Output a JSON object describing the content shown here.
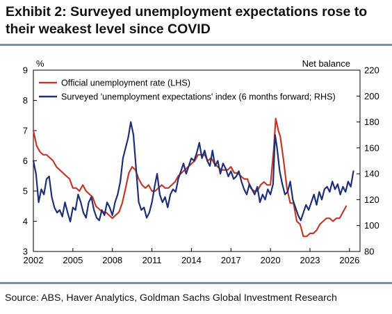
{
  "header": {
    "title": "Exhibit 2: Surveyed unemployment expectations rose to their weakest level since COVID"
  },
  "footer": {
    "source": "Source: ABS, Haver Analytics, Goldman Sachs Global Investment Research"
  },
  "chart_data": {
    "type": "line",
    "title": "",
    "xlabel": "",
    "ylabel_left": "%",
    "ylabel_right": "Net balance",
    "xlim": [
      2002,
      2026.8
    ],
    "ylim_left": [
      3,
      9
    ],
    "ylim_right": [
      80,
      220
    ],
    "x_ticks": [
      2002,
      2005,
      2008,
      2011,
      2014,
      2017,
      2020,
      2023,
      2026
    ],
    "y_left_ticks": [
      3,
      4,
      5,
      6,
      7,
      8,
      9
    ],
    "y_right_ticks": [
      80,
      100,
      120,
      140,
      160,
      180,
      200,
      220
    ],
    "grid": false,
    "legend_position": "top-left",
    "series": [
      {
        "name": "Official unemployment rate (LHS)",
        "axis": "left",
        "color": "#c0392b",
        "points": [
          [
            2002.0,
            7.0
          ],
          [
            2002.25,
            6.5
          ],
          [
            2002.5,
            6.3
          ],
          [
            2002.75,
            6.2
          ],
          [
            2003.0,
            6.2
          ],
          [
            2003.25,
            6.1
          ],
          [
            2003.5,
            6.0
          ],
          [
            2003.75,
            5.8
          ],
          [
            2004.0,
            5.7
          ],
          [
            2004.25,
            5.6
          ],
          [
            2004.5,
            5.5
          ],
          [
            2004.75,
            5.4
          ],
          [
            2005.0,
            5.1
          ],
          [
            2005.25,
            5.1
          ],
          [
            2005.5,
            5.0
          ],
          [
            2005.75,
            5.2
          ],
          [
            2006.0,
            5.0
          ],
          [
            2006.25,
            4.9
          ],
          [
            2006.5,
            4.8
          ],
          [
            2006.75,
            4.5
          ],
          [
            2007.0,
            4.4
          ],
          [
            2007.25,
            4.3
          ],
          [
            2007.5,
            4.3
          ],
          [
            2007.75,
            4.2
          ],
          [
            2008.0,
            4.1
          ],
          [
            2008.25,
            4.2
          ],
          [
            2008.5,
            4.3
          ],
          [
            2008.75,
            4.6
          ],
          [
            2009.0,
            5.1
          ],
          [
            2009.25,
            5.6
          ],
          [
            2009.5,
            5.8
          ],
          [
            2009.75,
            5.7
          ],
          [
            2010.0,
            5.4
          ],
          [
            2010.25,
            5.2
          ],
          [
            2010.5,
            5.1
          ],
          [
            2010.75,
            5.2
          ],
          [
            2011.0,
            5.0
          ],
          [
            2011.25,
            5.0
          ],
          [
            2011.5,
            5.1
          ],
          [
            2011.75,
            5.2
          ],
          [
            2012.0,
            5.1
          ],
          [
            2012.25,
            5.1
          ],
          [
            2012.5,
            5.2
          ],
          [
            2012.75,
            5.3
          ],
          [
            2013.0,
            5.5
          ],
          [
            2013.25,
            5.6
          ],
          [
            2013.5,
            5.7
          ],
          [
            2013.75,
            5.8
          ],
          [
            2014.0,
            5.9
          ],
          [
            2014.25,
            6.0
          ],
          [
            2014.5,
            6.2
          ],
          [
            2014.75,
            6.2
          ],
          [
            2015.0,
            6.2
          ],
          [
            2015.25,
            6.0
          ],
          [
            2015.5,
            6.1
          ],
          [
            2015.75,
            5.9
          ],
          [
            2016.0,
            5.8
          ],
          [
            2016.25,
            5.7
          ],
          [
            2016.5,
            5.7
          ],
          [
            2016.75,
            5.7
          ],
          [
            2017.0,
            5.8
          ],
          [
            2017.25,
            5.6
          ],
          [
            2017.5,
            5.6
          ],
          [
            2017.75,
            5.5
          ],
          [
            2018.0,
            5.4
          ],
          [
            2018.25,
            5.4
          ],
          [
            2018.5,
            5.1
          ],
          [
            2018.75,
            5.0
          ],
          [
            2019.0,
            5.0
          ],
          [
            2019.25,
            5.2
          ],
          [
            2019.5,
            5.3
          ],
          [
            2019.75,
            5.2
          ],
          [
            2020.0,
            5.2
          ],
          [
            2020.25,
            6.4
          ],
          [
            2020.4,
            7.4
          ],
          [
            2020.6,
            7.0
          ],
          [
            2020.75,
            6.8
          ],
          [
            2021.0,
            6.0
          ],
          [
            2021.25,
            5.1
          ],
          [
            2021.5,
            4.6
          ],
          [
            2021.75,
            4.6
          ],
          [
            2022.0,
            4.0
          ],
          [
            2022.25,
            3.9
          ],
          [
            2022.5,
            3.5
          ],
          [
            2022.75,
            3.5
          ],
          [
            2023.0,
            3.6
          ],
          [
            2023.25,
            3.6
          ],
          [
            2023.5,
            3.7
          ],
          [
            2023.75,
            3.9
          ],
          [
            2024.0,
            4.0
          ],
          [
            2024.25,
            4.1
          ],
          [
            2024.5,
            4.1
          ],
          [
            2024.75,
            4.0
          ],
          [
            2025.0,
            4.1
          ],
          [
            2025.25,
            4.1
          ],
          [
            2025.5,
            4.3
          ],
          [
            2025.75,
            4.5
          ]
        ]
      },
      {
        "name": "Surveyed 'unemployment expectations' index (6 months forward; RHS)",
        "axis": "right",
        "color": "#1f2f75",
        "points": [
          [
            2002.0,
            150
          ],
          [
            2002.2,
            140
          ],
          [
            2002.4,
            118
          ],
          [
            2002.6,
            128
          ],
          [
            2002.8,
            124
          ],
          [
            2003.0,
            136
          ],
          [
            2003.2,
            138
          ],
          [
            2003.4,
            122
          ],
          [
            2003.6,
            114
          ],
          [
            2003.8,
            110
          ],
          [
            2004.0,
            112
          ],
          [
            2004.2,
            107
          ],
          [
            2004.4,
            118
          ],
          [
            2004.6,
            110
          ],
          [
            2004.8,
            103
          ],
          [
            2005.0,
            114
          ],
          [
            2005.2,
            112
          ],
          [
            2005.4,
            124
          ],
          [
            2005.6,
            118
          ],
          [
            2005.8,
            110
          ],
          [
            2006.0,
            106
          ],
          [
            2006.2,
            118
          ],
          [
            2006.4,
            122
          ],
          [
            2006.6,
            112
          ],
          [
            2006.8,
            106
          ],
          [
            2007.0,
            104
          ],
          [
            2007.2,
            112
          ],
          [
            2007.4,
            108
          ],
          [
            2007.6,
            118
          ],
          [
            2007.8,
            114
          ],
          [
            2008.0,
            108
          ],
          [
            2008.2,
            118
          ],
          [
            2008.4,
            124
          ],
          [
            2008.6,
            134
          ],
          [
            2008.8,
            152
          ],
          [
            2009.0,
            160
          ],
          [
            2009.2,
            168
          ],
          [
            2009.4,
            180
          ],
          [
            2009.6,
            170
          ],
          [
            2009.8,
            144
          ],
          [
            2010.0,
            118
          ],
          [
            2010.2,
            112
          ],
          [
            2010.4,
            114
          ],
          [
            2010.6,
            106
          ],
          [
            2010.8,
            110
          ],
          [
            2011.0,
            118
          ],
          [
            2011.2,
            130
          ],
          [
            2011.4,
            140
          ],
          [
            2011.6,
            124
          ],
          [
            2011.8,
            118
          ],
          [
            2012.0,
            122
          ],
          [
            2012.2,
            114
          ],
          [
            2012.4,
            124
          ],
          [
            2012.6,
            128
          ],
          [
            2012.8,
            126
          ],
          [
            2013.0,
            136
          ],
          [
            2013.2,
            142
          ],
          [
            2013.4,
            148
          ],
          [
            2013.6,
            140
          ],
          [
            2013.8,
            146
          ],
          [
            2014.0,
            152
          ],
          [
            2014.2,
            150
          ],
          [
            2014.4,
            156
          ],
          [
            2014.6,
            164
          ],
          [
            2014.8,
            152
          ],
          [
            2015.0,
            158
          ],
          [
            2015.2,
            150
          ],
          [
            2015.4,
            146
          ],
          [
            2015.6,
            158
          ],
          [
            2015.8,
            146
          ],
          [
            2016.0,
            150
          ],
          [
            2016.2,
            140
          ],
          [
            2016.4,
            148
          ],
          [
            2016.6,
            144
          ],
          [
            2016.8,
            138
          ],
          [
            2017.0,
            142
          ],
          [
            2017.2,
            136
          ],
          [
            2017.4,
            138
          ],
          [
            2017.6,
            142
          ],
          [
            2017.8,
            134
          ],
          [
            2018.0,
            128
          ],
          [
            2018.2,
            124
          ],
          [
            2018.4,
            132
          ],
          [
            2018.6,
            128
          ],
          [
            2018.8,
            124
          ],
          [
            2019.0,
            130
          ],
          [
            2019.2,
            118
          ],
          [
            2019.4,
            124
          ],
          [
            2019.6,
            120
          ],
          [
            2019.8,
            128
          ],
          [
            2020.0,
            124
          ],
          [
            2020.2,
            132
          ],
          [
            2020.35,
            170
          ],
          [
            2020.5,
            160
          ],
          [
            2020.7,
            142
          ],
          [
            2020.9,
            132
          ],
          [
            2021.1,
            124
          ],
          [
            2021.3,
            126
          ],
          [
            2021.5,
            134
          ],
          [
            2021.7,
            120
          ],
          [
            2021.9,
            114
          ],
          [
            2022.1,
            108
          ],
          [
            2022.3,
            104
          ],
          [
            2022.5,
            110
          ],
          [
            2022.7,
            116
          ],
          [
            2022.9,
            112
          ],
          [
            2023.1,
            118
          ],
          [
            2023.3,
            124
          ],
          [
            2023.5,
            116
          ],
          [
            2023.7,
            126
          ],
          [
            2023.9,
            120
          ],
          [
            2024.1,
            128
          ],
          [
            2024.3,
            130
          ],
          [
            2024.5,
            126
          ],
          [
            2024.7,
            134
          ],
          [
            2024.9,
            128
          ],
          [
            2025.1,
            132
          ],
          [
            2025.3,
            124
          ],
          [
            2025.5,
            130
          ],
          [
            2025.7,
            126
          ],
          [
            2025.9,
            134
          ],
          [
            2026.1,
            130
          ],
          [
            2026.3,
            142
          ]
        ]
      }
    ]
  }
}
